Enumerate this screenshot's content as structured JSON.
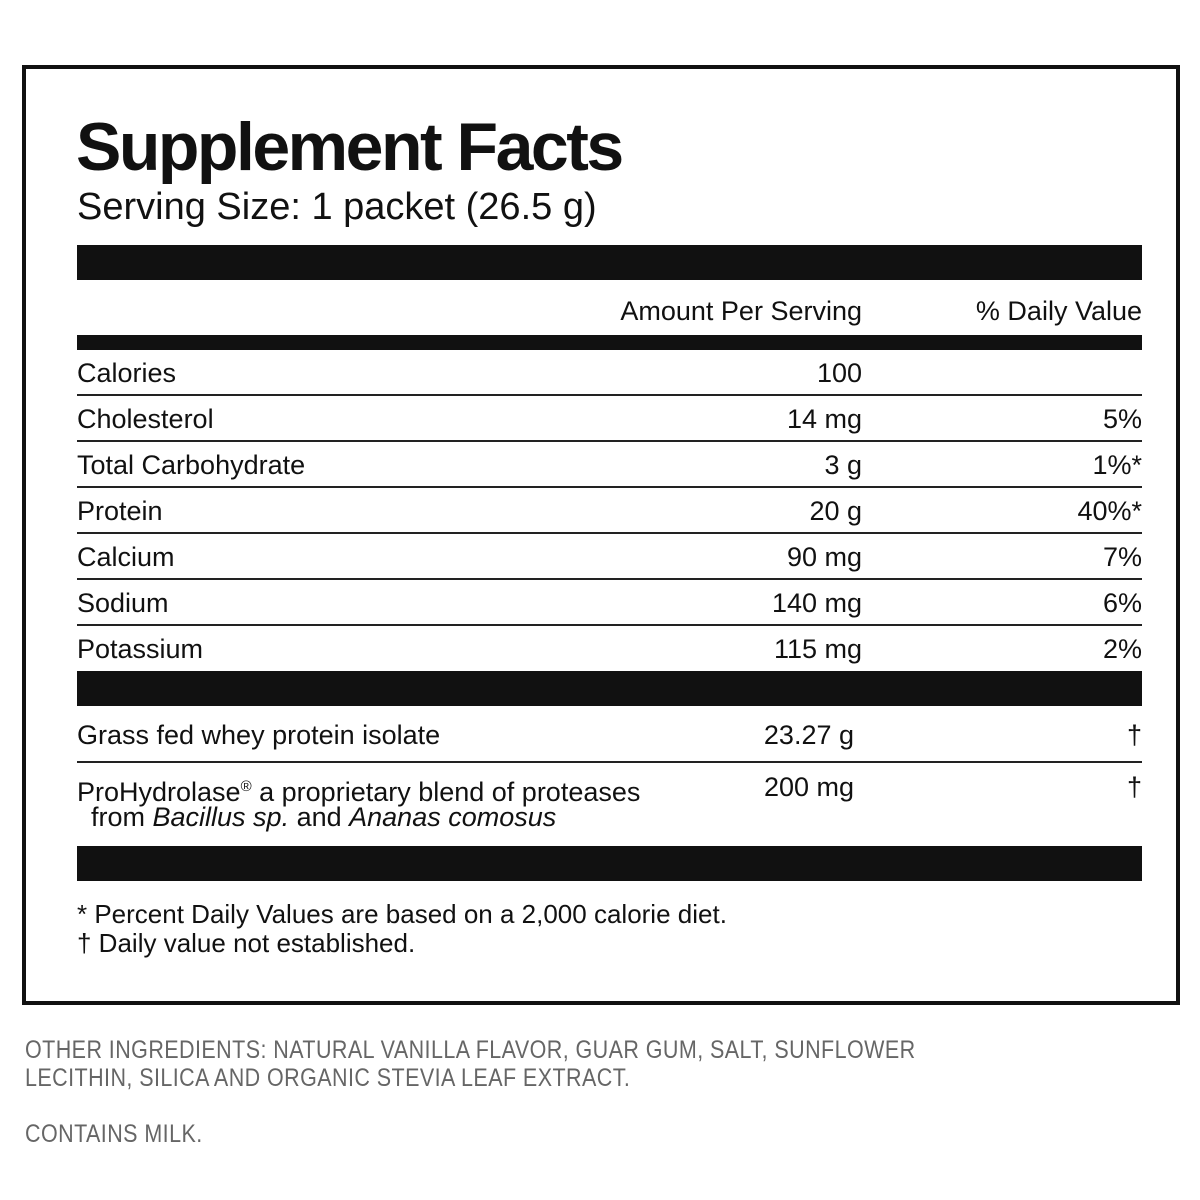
{
  "title": "Supplement Facts",
  "serving_size": "Serving Size: 1 packet (26.5 g)",
  "header": {
    "amount": "Amount Per Serving",
    "daily_value": "% Daily Value"
  },
  "rows": [
    {
      "nutrient": "Calories",
      "amount": "100"
    },
    {
      "nutrient": "Cholesterol",
      "amount": "14 mg",
      "daily_value": "5%"
    },
    {
      "nutrient": "Total Carbohydrate",
      "amount": "3 g",
      "daily_value": "1%*"
    },
    {
      "nutrient": "Protein",
      "amount": "20 g",
      "daily_value": "40%*"
    },
    {
      "nutrient": "Calcium",
      "amount": "90 mg",
      "daily_value": "7%"
    },
    {
      "nutrient": "Sodium",
      "amount": "140 mg",
      "daily_value": "6%"
    },
    {
      "nutrient": "Potassium",
      "amount": "115 mg",
      "daily_value": "2%"
    }
  ],
  "ingredients": [
    {
      "name": "Grass fed whey protein isolate",
      "amount": "23.27 g",
      "daily_value": "†"
    },
    {
      "name_parts": [
        "ProHydrolase",
        "®",
        " a proprietary blend of proteases"
      ],
      "name_line2_parts": [
        "from ",
        "Bacillus sp.",
        " and ",
        "Ananas comosus"
      ],
      "amount": "200 mg",
      "daily_value": "†"
    }
  ],
  "footnotes": [
    "* Percent Daily Values are based on a 2,000 calorie diet.",
    "† Daily value not established."
  ],
  "other_ingredients": [
    "OTHER INGREDIENTS: NATURAL VANILLA FLAVOR, GUAR GUM, SALT, SUNFLOWER",
    "LECITHIN, SILICA AND ORGANIC STEVIA LEAF EXTRACT."
  ],
  "contains": "CONTAINS MILK."
}
